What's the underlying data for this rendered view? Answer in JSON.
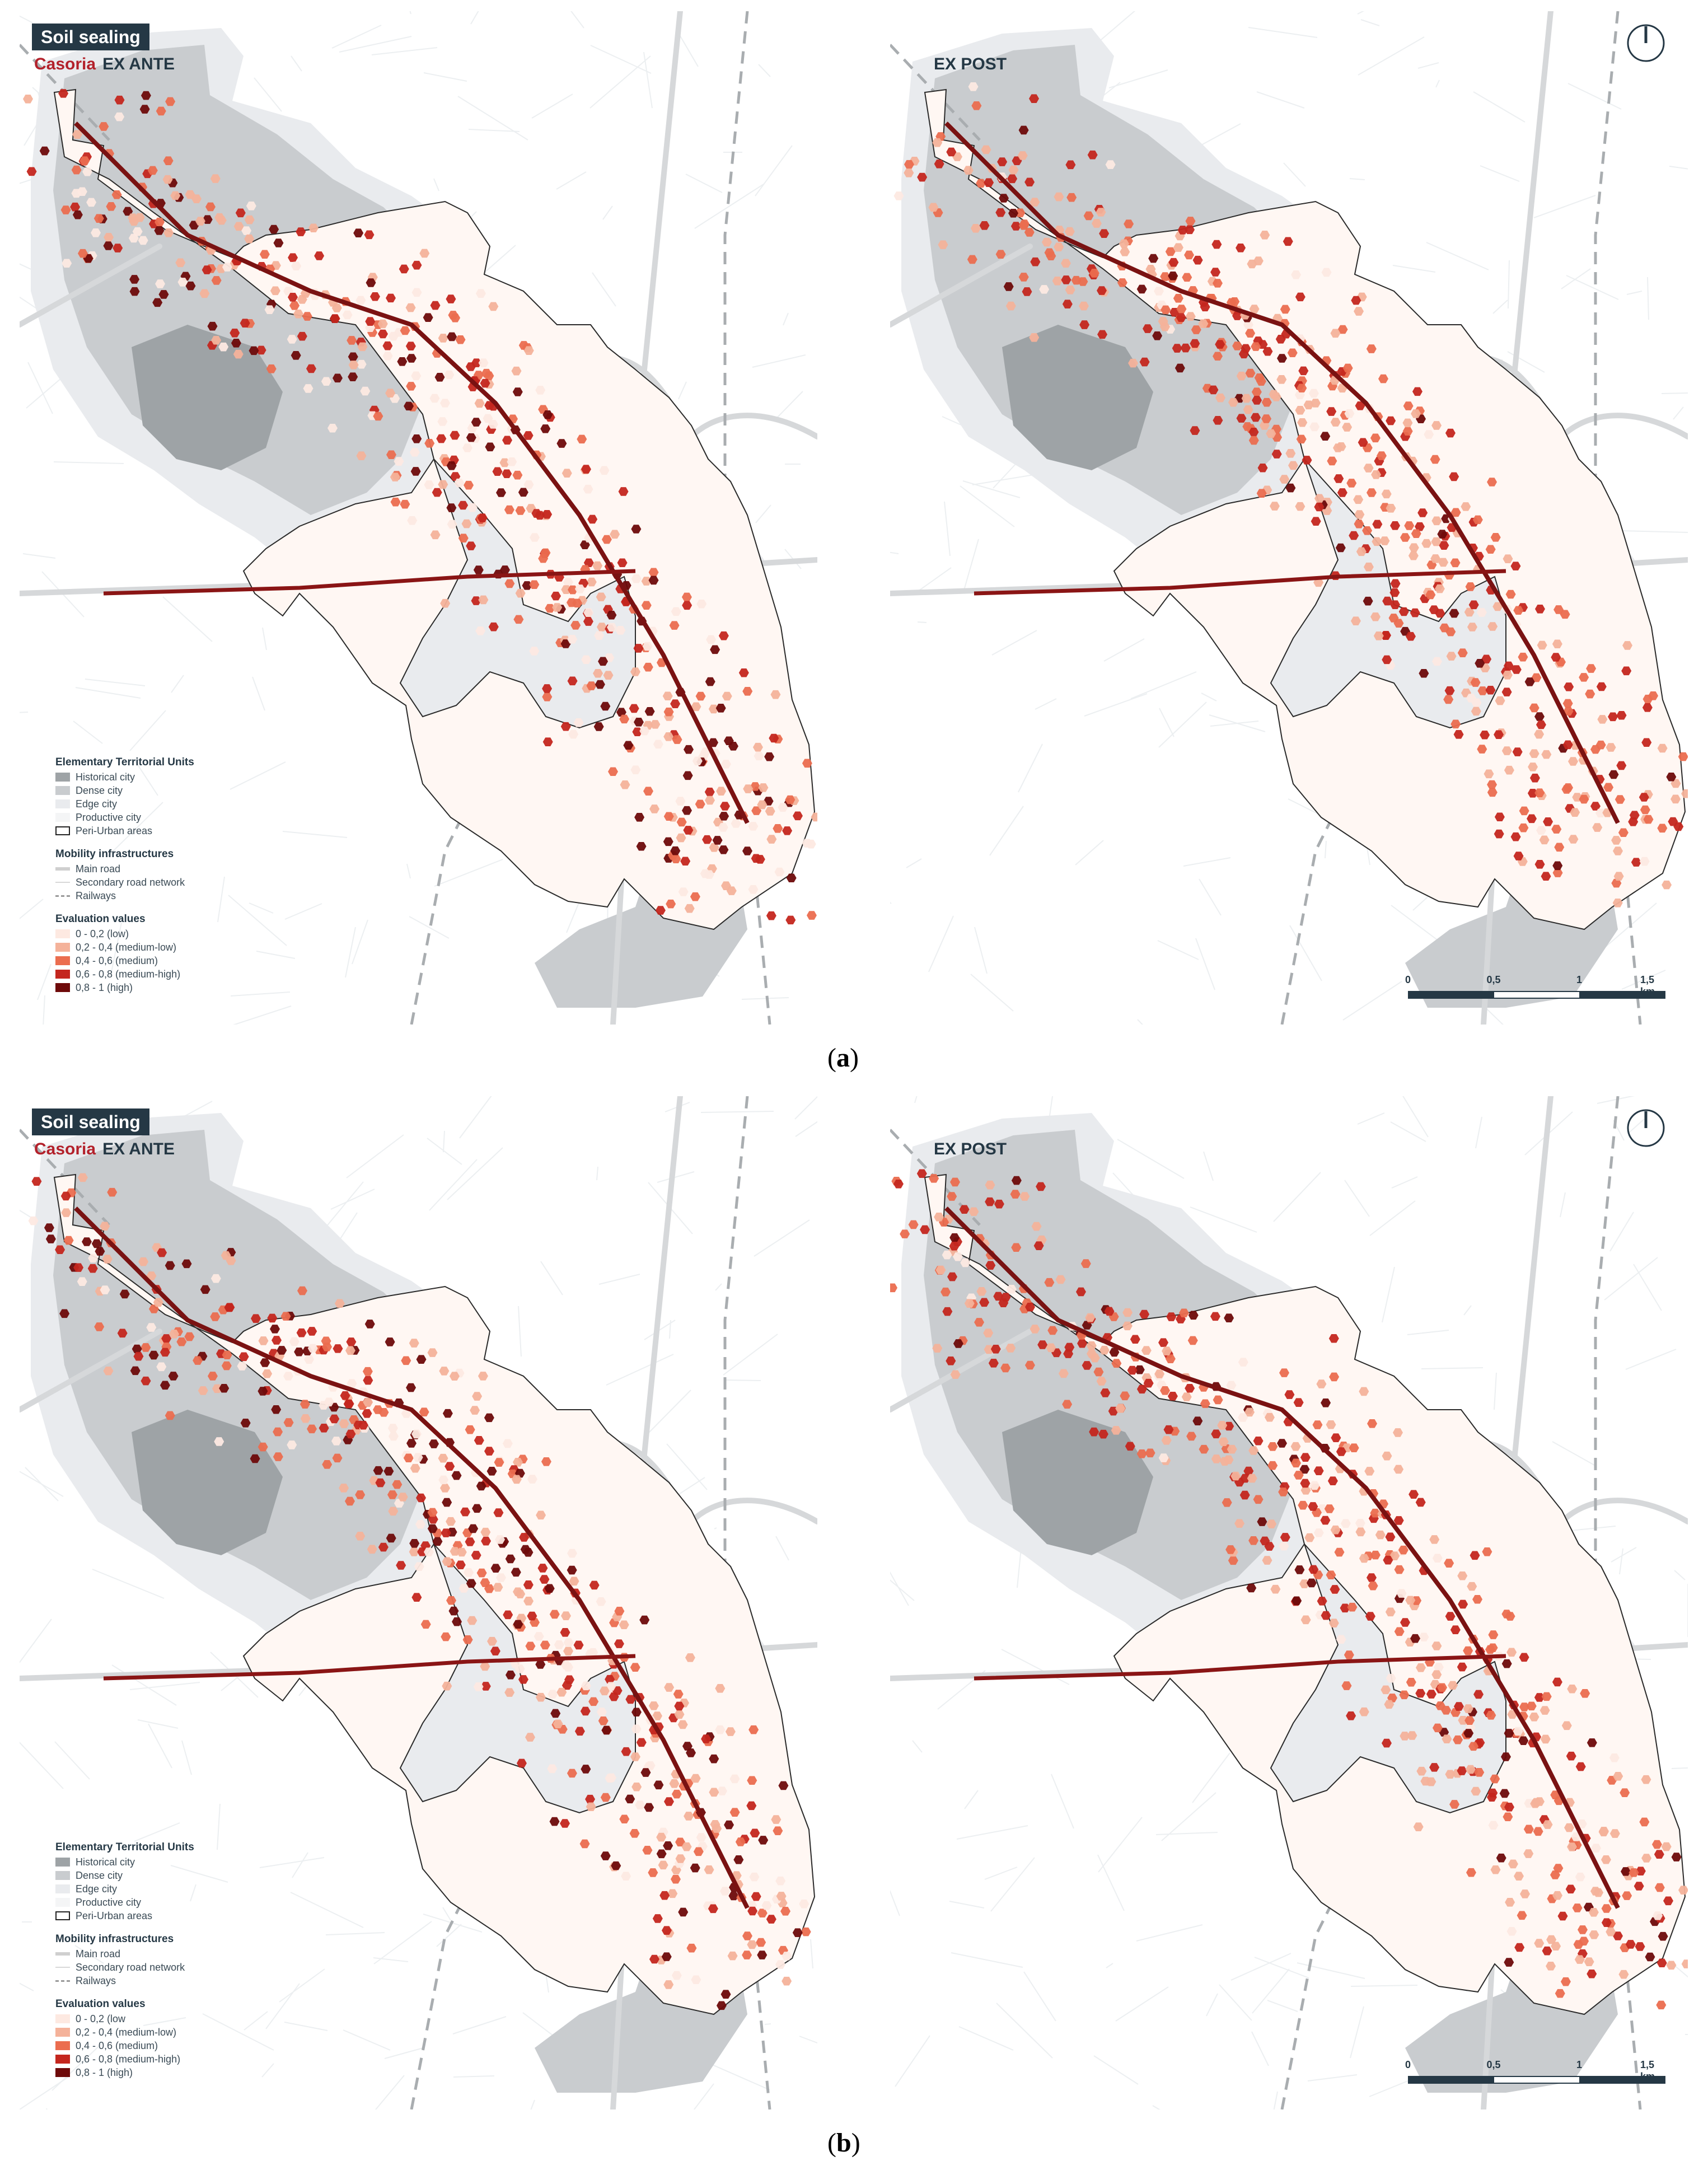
{
  "panels": [
    {
      "id": "a-left",
      "title": "Soil sealing",
      "city": "Casoria",
      "phase": "EX ANTE",
      "has_legend": true
    },
    {
      "id": "a-right",
      "phase": "EX POST",
      "has_legend": false
    },
    {
      "id": "b-left",
      "title": "Soil sealing",
      "city": "Casoria",
      "phase": "EX ANTE",
      "has_legend": true
    },
    {
      "id": "b-right",
      "phase": "EX POST",
      "has_legend": false
    }
  ],
  "legend": {
    "etu_title": "Elementary Territorial Units",
    "etu_items": [
      "Historical city",
      "Dense city",
      "Edge city",
      "Productive city",
      "Peri-Urban areas"
    ],
    "mob_title": "Mobility infrastructures",
    "mob_items": [
      "Main road",
      "Secondary road network",
      "Railways"
    ],
    "eval_title": "Evaluation values",
    "eval_items_a": [
      "0 - 0,2 (low)",
      "0,2 - 0,4 (medium-low)",
      "0,4 - 0,6 (medium)",
      "0,6 - 0,8 (medium-high)",
      "0,8 - 1 (high)"
    ],
    "eval_items_b": [
      "0 - 0,2 (low",
      "0,2 - 0,4 (medium-low)",
      "0,4 - 0,6 (medium)",
      "0,6 - 0,8 (medium-high)",
      "0,8 - 1 (high)"
    ]
  },
  "scale": {
    "ticks": [
      "0",
      "0,5",
      "1",
      "1,5 km"
    ]
  },
  "captions": {
    "a": "a",
    "b": "b"
  },
  "colors": {
    "historical": "#9ea3a6",
    "dense": "#c9cccf",
    "edge": "#e9ebee",
    "productive": "#f4f5f6",
    "eval": [
      "#fde9e1",
      "#f4b29a",
      "#eb6d4f",
      "#c4261e",
      "#6e0a0a"
    ],
    "title_bg": "#253845",
    "city": "#b3212b"
  }
}
